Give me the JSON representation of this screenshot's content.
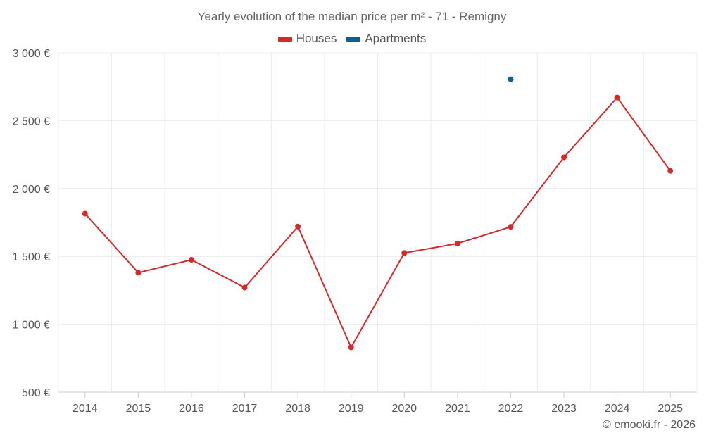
{
  "chart_data": {
    "type": "line",
    "title": "Yearly evolution of the median price per m² - 71 - Remigny",
    "categories": [
      "2014",
      "2015",
      "2016",
      "2017",
      "2018",
      "2019",
      "2020",
      "2021",
      "2022",
      "2023",
      "2024",
      "2025"
    ],
    "series": [
      {
        "name": "Houses",
        "color": "#d42a2a",
        "values": [
          1815,
          1380,
          1475,
          1270,
          1720,
          830,
          1525,
          1595,
          1718,
          2230,
          2670,
          2130
        ]
      },
      {
        "name": "Apartments",
        "color": "#0b5f96",
        "values": [
          null,
          null,
          null,
          null,
          null,
          null,
          null,
          null,
          2805,
          null,
          null,
          null
        ]
      }
    ],
    "ylim": [
      500,
      3000
    ],
    "yticks": [
      500,
      1000,
      1500,
      2000,
      2500,
      3000
    ],
    "ytick_labels": [
      "500 €",
      "1 000 €",
      "1 500 €",
      "2 000 €",
      "2 500 €",
      "3 000 €"
    ],
    "xlabel": "",
    "ylabel": "",
    "grid": true,
    "legend_position": "top-center"
  },
  "credit": "© emooki.fr - 2026"
}
